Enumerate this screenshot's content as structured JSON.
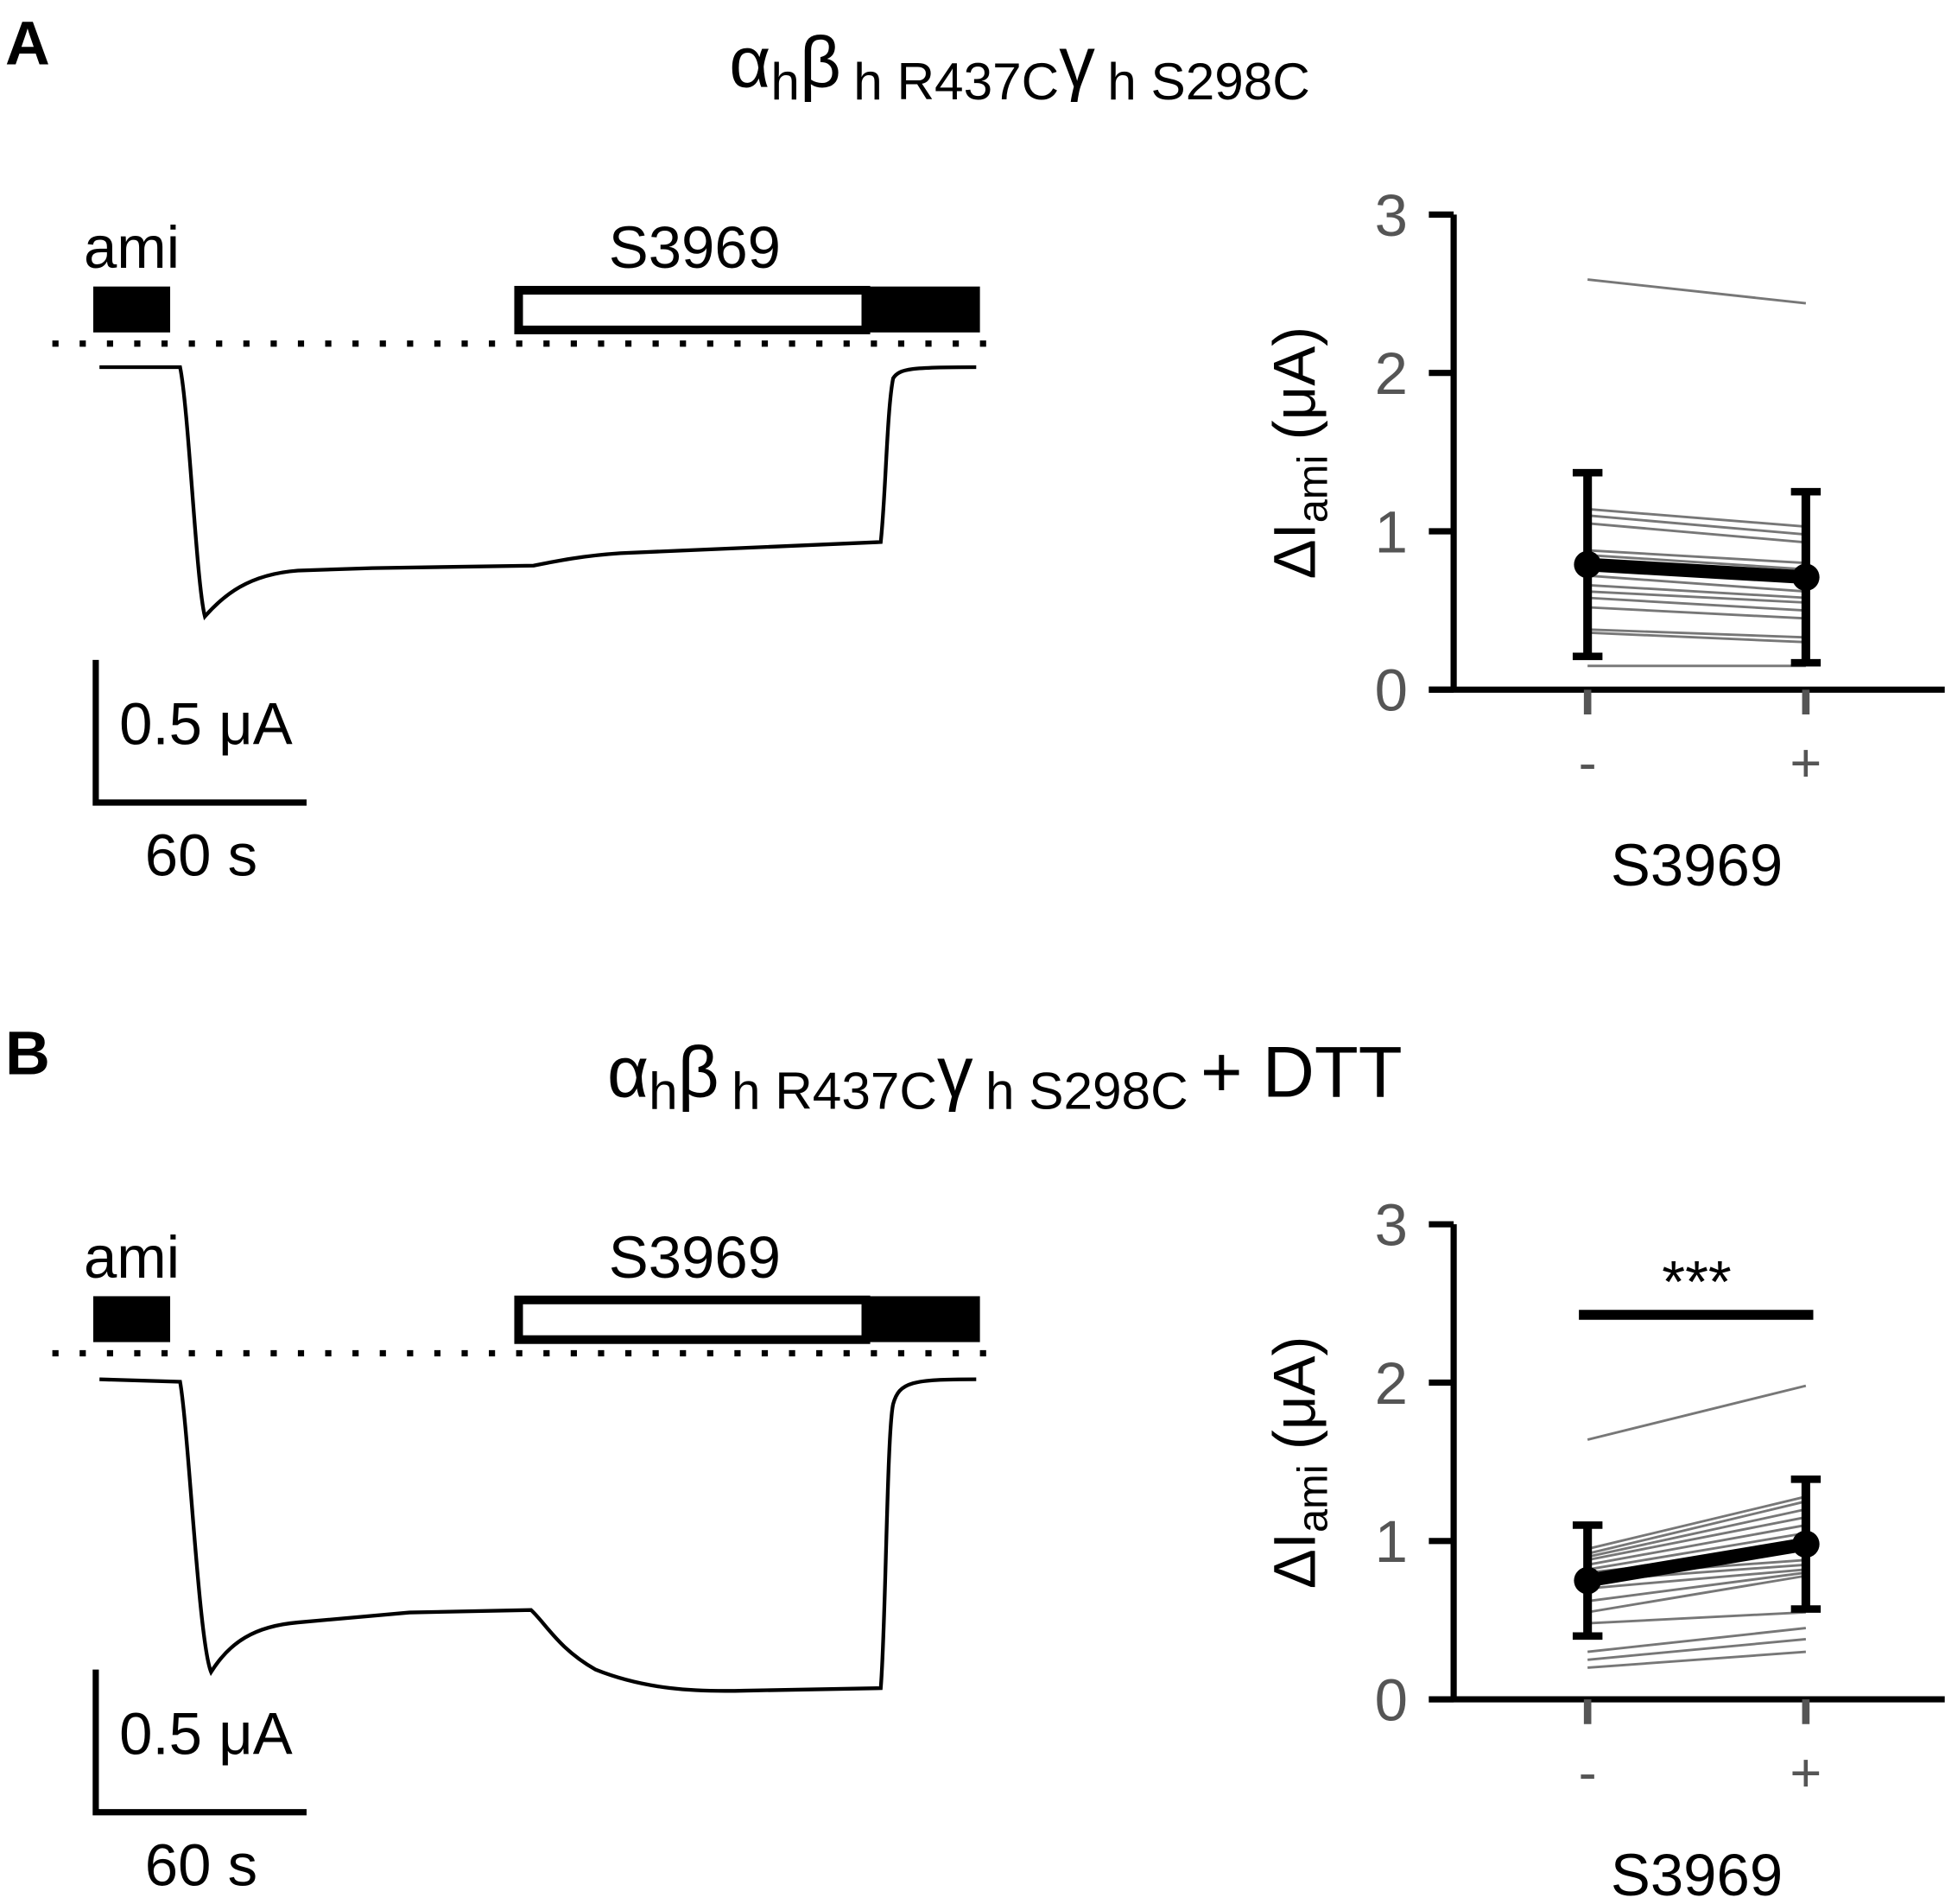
{
  "chart_data": [
    {
      "type": "line",
      "panel": "A",
      "title": [
        "α",
        "h",
        "β",
        "h R437C",
        "γ",
        "h S298C"
      ],
      "trace_labels": {
        "blocker": "ami",
        "drug": "S3969",
        "scale_current": "0.5 μA",
        "scale_time": "60 s"
      },
      "ylabel": [
        "ΔI",
        "ami",
        "(μA)"
      ],
      "xlabel": "S3969",
      "categories": [
        "-",
        "+"
      ],
      "ylim": [
        0,
        3
      ],
      "yticks": [
        0,
        1,
        2,
        3
      ],
      "mean": {
        "values": [
          0.79,
          0.71
        ],
        "errors": [
          0.58,
          0.54
        ],
        "color": "#000000"
      },
      "series": [
        {
          "color": "#777777",
          "values": [
            2.59,
            2.44
          ]
        },
        {
          "color": "#777777",
          "values": [
            1.14,
            1.03
          ]
        },
        {
          "color": "#777777",
          "values": [
            1.1,
            0.98
          ]
        },
        {
          "color": "#777777",
          "values": [
            1.05,
            0.93
          ]
        },
        {
          "color": "#777777",
          "values": [
            0.88,
            0.8
          ]
        },
        {
          "color": "#777777",
          "values": [
            0.85,
            0.76
          ]
        },
        {
          "color": "#777777",
          "values": [
            0.8,
            0.72
          ]
        },
        {
          "color": "#777777",
          "values": [
            0.77,
            0.7
          ]
        },
        {
          "color": "#777777",
          "values": [
            0.72,
            0.62
          ]
        },
        {
          "color": "#777777",
          "values": [
            0.66,
            0.58
          ]
        },
        {
          "color": "#777777",
          "values": [
            0.62,
            0.55
          ]
        },
        {
          "color": "#777777",
          "values": [
            0.58,
            0.5
          ]
        },
        {
          "color": "#777777",
          "values": [
            0.52,
            0.45
          ]
        },
        {
          "color": "#777777",
          "values": [
            0.38,
            0.33
          ]
        },
        {
          "color": "#777777",
          "values": [
            0.36,
            0.3
          ]
        },
        {
          "color": "#777777",
          "values": [
            0.15,
            0.15
          ]
        }
      ]
    },
    {
      "type": "line",
      "panel": "B",
      "title": [
        "α",
        "h",
        "β",
        "h R437C",
        "γ",
        "h S298C",
        "+ DTT"
      ],
      "trace_labels": {
        "blocker": "ami",
        "drug": "S3969",
        "scale_current": "0.5 μA",
        "scale_time": "60 s"
      },
      "ylabel": [
        "ΔI",
        "ami",
        "(μA)"
      ],
      "xlabel": "S3969",
      "categories": [
        "-",
        "+"
      ],
      "ylim": [
        0,
        3
      ],
      "yticks": [
        0,
        1,
        2,
        3
      ],
      "annotation": "***",
      "mean": {
        "values": [
          0.75,
          0.98
        ],
        "errors": [
          0.35,
          0.41
        ],
        "color": "#000000"
      },
      "series": [
        {
          "color": "#777777",
          "values": [
            1.64,
            1.98
          ]
        },
        {
          "color": "#777777",
          "values": [
            0.95,
            1.28
          ]
        },
        {
          "color": "#777777",
          "values": [
            0.92,
            1.25
          ]
        },
        {
          "color": "#777777",
          "values": [
            0.9,
            1.2
          ]
        },
        {
          "color": "#777777",
          "values": [
            0.88,
            1.15
          ]
        },
        {
          "color": "#777777",
          "values": [
            0.85,
            1.1
          ]
        },
        {
          "color": "#777777",
          "values": [
            0.82,
            1.05
          ]
        },
        {
          "color": "#777777",
          "values": [
            0.8,
            0.95
          ]
        },
        {
          "color": "#777777",
          "values": [
            0.78,
            0.88
          ]
        },
        {
          "color": "#777777",
          "values": [
            0.75,
            0.85
          ]
        },
        {
          "color": "#777777",
          "values": [
            0.7,
            0.82
          ]
        },
        {
          "color": "#777777",
          "values": [
            0.62,
            0.8
          ]
        },
        {
          "color": "#777777",
          "values": [
            0.55,
            0.78
          ]
        },
        {
          "color": "#777777",
          "values": [
            0.48,
            0.55
          ]
        },
        {
          "color": "#777777",
          "values": [
            0.3,
            0.45
          ]
        },
        {
          "color": "#777777",
          "values": [
            0.25,
            0.38
          ]
        },
        {
          "color": "#777777",
          "values": [
            0.2,
            0.3
          ]
        }
      ]
    }
  ]
}
